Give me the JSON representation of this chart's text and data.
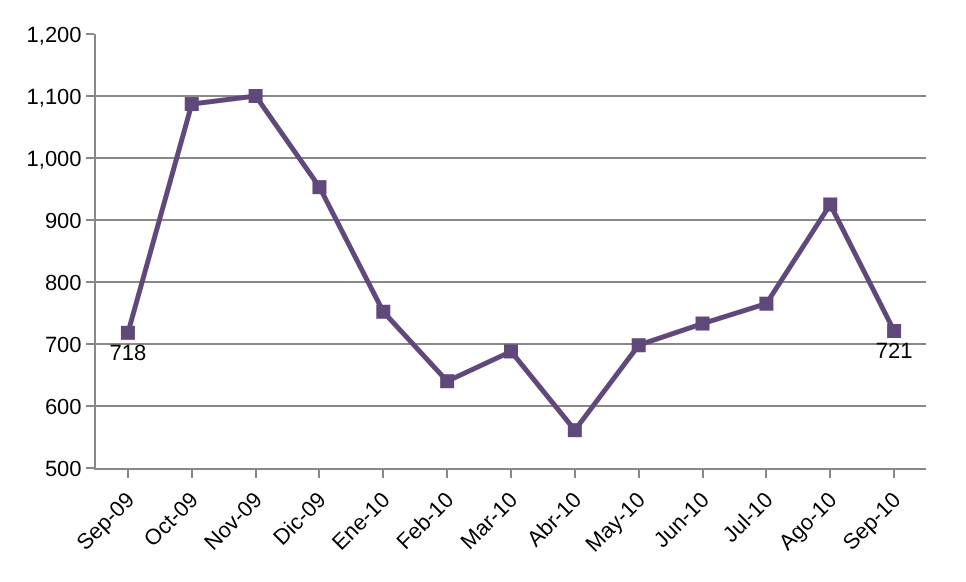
{
  "chart_data": {
    "type": "line",
    "categories": [
      "Sep-09",
      "Oct-09",
      "Nov-09",
      "Dic-09",
      "Ene-10",
      "Feb-10",
      "Mar-10",
      "Abr-10",
      "May-10",
      "Jun-10",
      "Jul-10",
      "Ago-10",
      "Sep-10"
    ],
    "series": [
      {
        "color": "#60497a",
        "values": [
          718,
          1087,
          1100,
          953,
          752,
          640,
          688,
          561,
          698,
          733,
          765,
          925,
          721
        ],
        "value_labels": [
          "718",
          null,
          null,
          null,
          null,
          null,
          null,
          null,
          null,
          null,
          null,
          null,
          "721"
        ]
      }
    ],
    "ylim": [
      500,
      1200
    ],
    "yticks": [
      {
        "value": 500,
        "label": "500"
      },
      {
        "value": 600,
        "label": "600"
      },
      {
        "value": 700,
        "label": "700"
      },
      {
        "value": 800,
        "label": "800"
      },
      {
        "value": 900,
        "label": "900"
      },
      {
        "value": 1000,
        "label": "1,000"
      },
      {
        "value": 1100,
        "label": "1,100"
      },
      {
        "value": 1200,
        "label": "1,200"
      }
    ],
    "grid": "y",
    "marker": "square",
    "line_style": "solid"
  }
}
